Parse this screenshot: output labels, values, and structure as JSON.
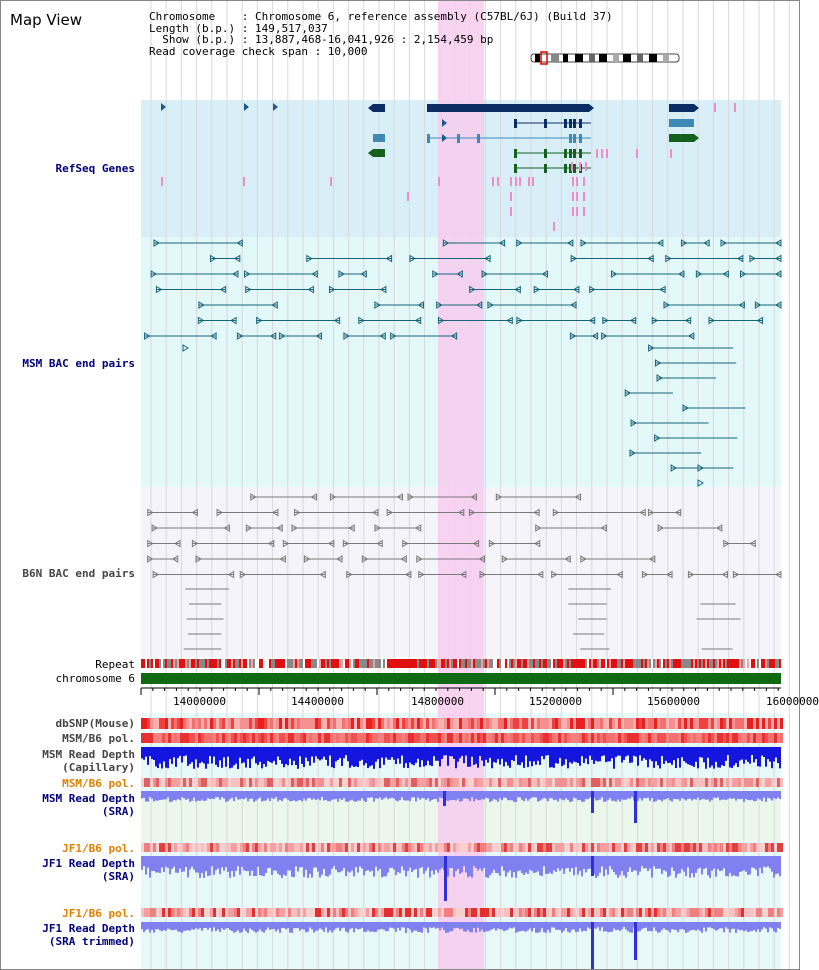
{
  "header": {
    "title": "Map View",
    "chromosome_line": "Chromosome    : Chromosome 6, reference assembly (C57BL/6J) (Build 37)",
    "length_line": "Length (b.p.) : 149,517,037",
    "show_line": "  Show (b.p.) : 13,887,468-16,041,926 : 2,154,459 bp",
    "coverage_line": "Read coverage check span : 10,000"
  },
  "tracks": {
    "refseq": "RefSeq Genes",
    "msm_bac": "MSM BAC end pairs",
    "b6n_bac": "B6N BAC end pairs",
    "repeat": "Repeat",
    "chromosome": "chromosome 6",
    "dbsnp": "dbSNP(Mouse)",
    "msm_b6_pol_1": "MSM/B6 pol.",
    "msm_read_depth_cap_1": "MSM Read Depth",
    "msm_read_depth_cap_2": "(Capillary)",
    "msm_b6_pol_2": "MSM/B6 pol.",
    "msm_read_depth_sra_1": "MSM Read Depth",
    "msm_read_depth_sra_2": "(SRA)",
    "jf1_b6_pol_1": "JF1/B6 pol.",
    "jf1_read_depth_sra_1": "JF1 Read Depth",
    "jf1_read_depth_sra_2": "(SRA)",
    "jf1_b6_pol_2": "JF1/B6 pol.",
    "jf1_read_depth_trim_1": "JF1 Read Depth",
    "jf1_read_depth_trim_2": "(SRA trimmed)"
  },
  "axis": {
    "ticks": [
      "14000000",
      "14400000",
      "14800000",
      "15200000",
      "15600000",
      "16000000"
    ]
  },
  "colors": {
    "refseq_bg": "#d9eff8",
    "bac_bg": "#e3f8f8",
    "b6n_bg": "#f4f4fa",
    "highlight": "#f7ccee",
    "gene_dark": "#0b2d63",
    "gene_mid": "#3f8ab5",
    "gene_green": "#14601f",
    "msm_pair": "#17637a",
    "b6n_pair": "#7a7a7a",
    "chromosome_bar": "#0f6a13",
    "label_navy": "#00007a",
    "label_orange": "#e08000",
    "depth_blue": "#1515e0",
    "depth_light": "#8080f0"
  }
}
